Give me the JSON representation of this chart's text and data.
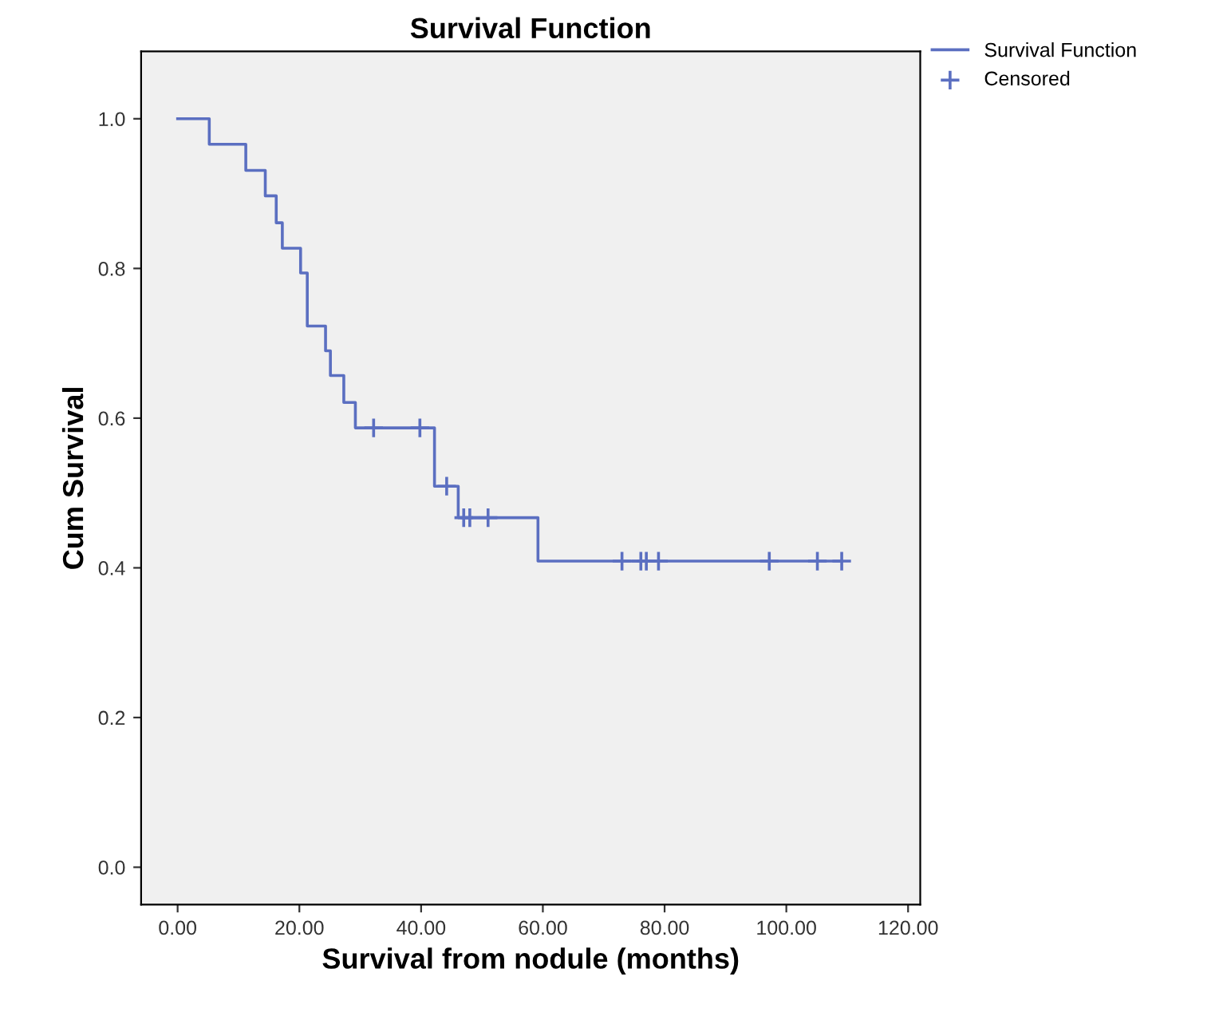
{
  "chart_data": {
    "type": "step",
    "title": "Survival Function",
    "xlabel": "Survival from nodule (months)",
    "ylabel": "Cum Survival",
    "series": [
      {
        "name": "Survival Function",
        "color": "#5b6fc1",
        "x": [
          0,
          5.2,
          11.2,
          14.4,
          16.2,
          17.2,
          20.2,
          21.3,
          24.3,
          25.1,
          27.3,
          29.2,
          42.2,
          46.1,
          59.2,
          109.1
        ],
        "values": [
          1.0,
          0.966,
          0.931,
          0.897,
          0.861,
          0.827,
          0.794,
          0.723,
          0.69,
          0.657,
          0.621,
          0.587,
          0.509,
          0.467,
          0.409,
          0.409
        ],
        "marker": "none"
      },
      {
        "name": "Censored",
        "type": "scatter",
        "color": "#5b6fc1",
        "x": [
          32.2,
          39.8,
          44.2,
          47.0,
          48.0,
          51.0,
          73.0,
          76.1,
          77.0,
          79.0,
          97.2,
          105.1,
          109.1
        ],
        "values": [
          0.587,
          0.587,
          0.509,
          0.467,
          0.467,
          0.467,
          0.409,
          0.409,
          0.409,
          0.409,
          0.409,
          0.409,
          0.409
        ],
        "marker": "cross"
      }
    ],
    "xlim": [
      -6,
      122
    ],
    "ylim": [
      -0.05,
      1.09
    ],
    "xticks": [
      {
        "value": 0,
        "label": "0.00"
      },
      {
        "value": 20,
        "label": "20.00"
      },
      {
        "value": 40,
        "label": "40.00"
      },
      {
        "value": 60,
        "label": "60.00"
      },
      {
        "value": 80,
        "label": "80.00"
      },
      {
        "value": 100,
        "label": "100.00"
      },
      {
        "value": 120,
        "label": "120.00"
      }
    ],
    "yticks": [
      {
        "value": 0,
        "label": "0.0"
      },
      {
        "value": 0.2,
        "label": "0.2"
      },
      {
        "value": 0.4,
        "label": "0.4"
      },
      {
        "value": 0.6,
        "label": "0.6"
      },
      {
        "value": 0.8,
        "label": "0.8"
      },
      {
        "value": 1.0,
        "label": "1.0"
      }
    ],
    "grid": false,
    "legend": "top right"
  }
}
